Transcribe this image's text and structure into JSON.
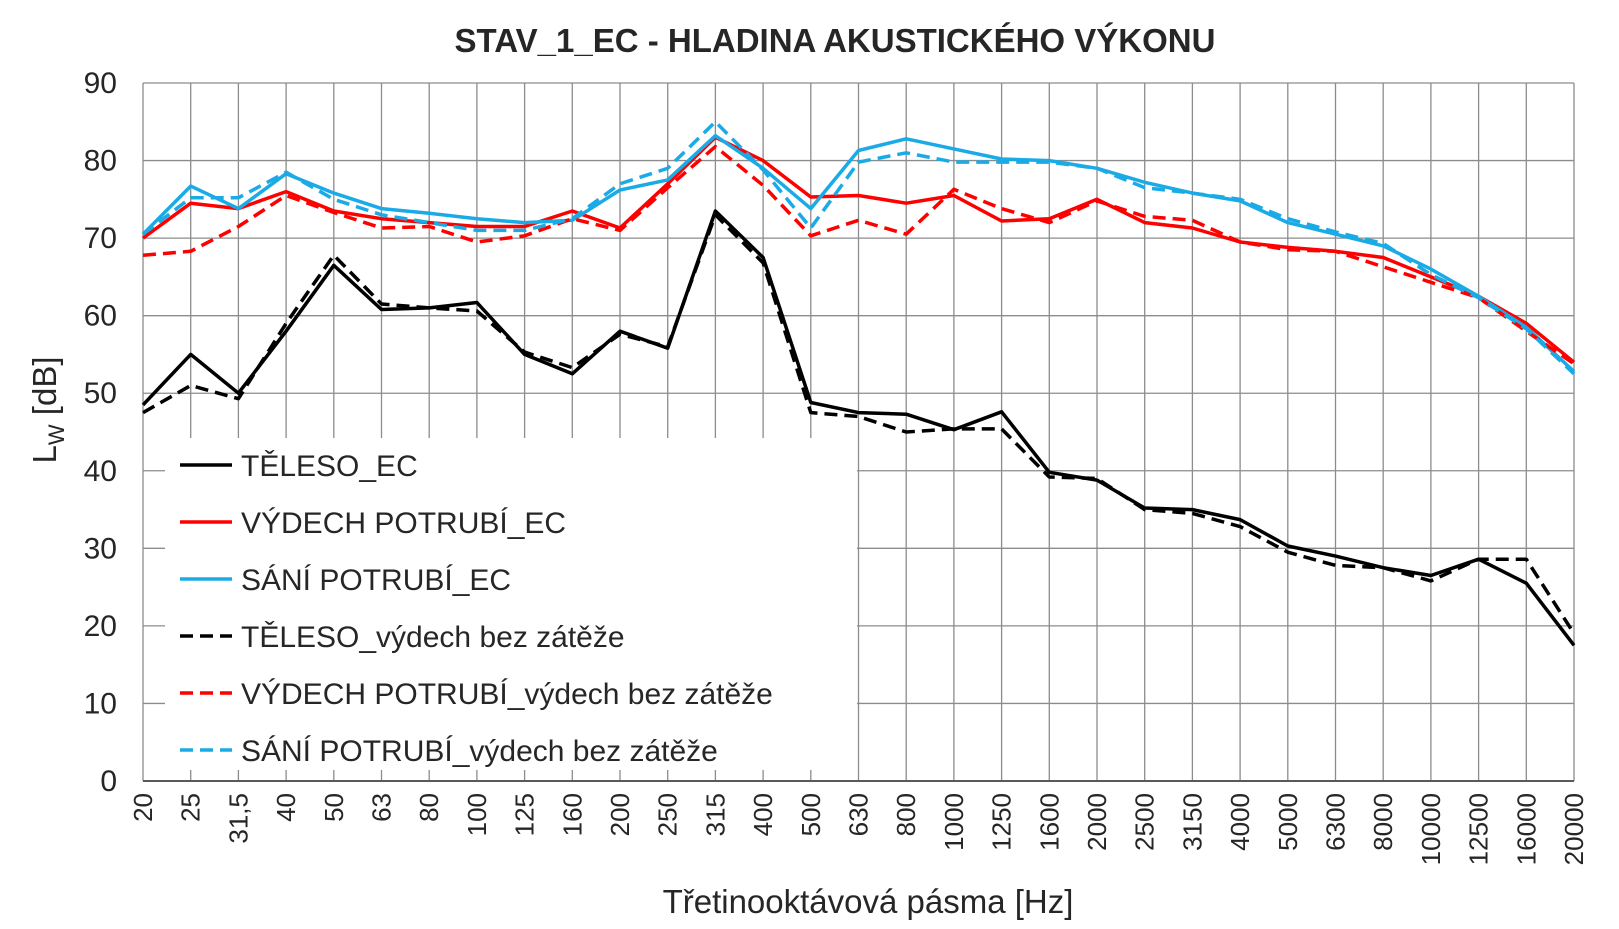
{
  "chart_data": {
    "type": "line",
    "title": "STAV_1_EC - HLADINA AKUSTICKÉHO VÝKONU",
    "xlabel": "Třetinooktávová pásma [Hz]",
    "ylabel_main": "L",
    "ylabel_sub": "W",
    "ylabel_unit": " [dB]",
    "ylim": [
      0,
      90
    ],
    "yticks": [
      0,
      10,
      20,
      30,
      40,
      50,
      60,
      70,
      80,
      90
    ],
    "grid": true,
    "legend_position": "lower-left",
    "categories": [
      "20",
      "25",
      "31,5",
      "40",
      "50",
      "63",
      "80",
      "100",
      "125",
      "160",
      "200",
      "250",
      "315",
      "400",
      "500",
      "630",
      "800",
      "1000",
      "1250",
      "1600",
      "2000",
      "2500",
      "3150",
      "4000",
      "5000",
      "6300",
      "8000",
      "10000",
      "12500",
      "16000",
      "20000"
    ],
    "series": [
      {
        "name": "TĚLESO_EC",
        "color": "#000000",
        "dash": "solid",
        "values": [
          48.5,
          55.0,
          50.0,
          58.0,
          66.5,
          60.8,
          61.0,
          61.7,
          55.0,
          52.5,
          58.0,
          55.8,
          73.5,
          67.5,
          48.8,
          47.5,
          47.3,
          45.3,
          47.6,
          39.8,
          38.8,
          35.2,
          35.0,
          33.7,
          30.3,
          29.0,
          27.5,
          26.5,
          28.6,
          25.5,
          17.5
        ]
      },
      {
        "name": "VÝDECH POTRUBÍ_EC",
        "color": "#ff0000",
        "dash": "solid",
        "values": [
          70.0,
          74.5,
          73.8,
          76.0,
          73.5,
          72.5,
          72.0,
          71.5,
          71.5,
          73.5,
          71.3,
          77.0,
          83.0,
          80.0,
          75.3,
          75.5,
          74.5,
          75.5,
          72.2,
          72.5,
          75.0,
          72.0,
          71.3,
          69.5,
          68.8,
          68.3,
          67.5,
          65.0,
          62.5,
          59.0,
          54.0
        ]
      },
      {
        "name": "SÁNÍ POTRUBÍ_EC",
        "color": "#1aabe6",
        "dash": "solid",
        "values": [
          70.5,
          76.7,
          73.8,
          78.3,
          75.8,
          73.8,
          73.2,
          72.5,
          72.0,
          72.3,
          76.2,
          77.5,
          83.2,
          79.0,
          73.8,
          81.3,
          82.8,
          81.5,
          80.2,
          80.0,
          79.0,
          77.2,
          75.8,
          74.8,
          72.0,
          70.5,
          69.0,
          66.0,
          62.5,
          58.5,
          52.8
        ]
      },
      {
        "name": "TĚLESO_výdech bez zátěže",
        "color": "#000000",
        "dash": "dashed",
        "values": [
          47.5,
          51.0,
          49.3,
          59.0,
          67.8,
          61.5,
          61.0,
          60.6,
          55.3,
          53.3,
          57.6,
          56.0,
          73.0,
          66.8,
          47.5,
          47.0,
          45.0,
          45.4,
          45.4,
          39.2,
          39.0,
          35.0,
          34.5,
          32.8,
          29.5,
          27.8,
          27.5,
          25.8,
          28.6,
          28.6,
          19.0
        ]
      },
      {
        "name": "VÝDECH POTRUBÍ_výdech bez zátěže",
        "color": "#ff0000",
        "dash": "dashed",
        "values": [
          67.8,
          68.3,
          71.5,
          75.5,
          73.3,
          71.3,
          71.5,
          69.5,
          70.3,
          72.5,
          71.0,
          76.5,
          81.8,
          76.8,
          70.3,
          72.3,
          70.5,
          76.3,
          73.8,
          72.0,
          74.8,
          72.8,
          72.3,
          69.5,
          68.5,
          68.3,
          66.3,
          64.3,
          62.3,
          58.0,
          53.8
        ]
      },
      {
        "name": "SÁNÍ POTRUBÍ_výdech bez zátěže",
        "color": "#1aabe6",
        "dash": "dashed",
        "values": [
          70.5,
          75.2,
          75.2,
          78.5,
          75.0,
          73.0,
          72.0,
          71.0,
          71.0,
          72.5,
          77.0,
          79.0,
          85.0,
          78.8,
          71.3,
          79.8,
          81.0,
          79.8,
          79.8,
          79.8,
          79.0,
          76.5,
          75.8,
          75.0,
          72.5,
          70.8,
          69.3,
          65.3,
          62.3,
          58.3,
          52.5
        ]
      }
    ]
  }
}
